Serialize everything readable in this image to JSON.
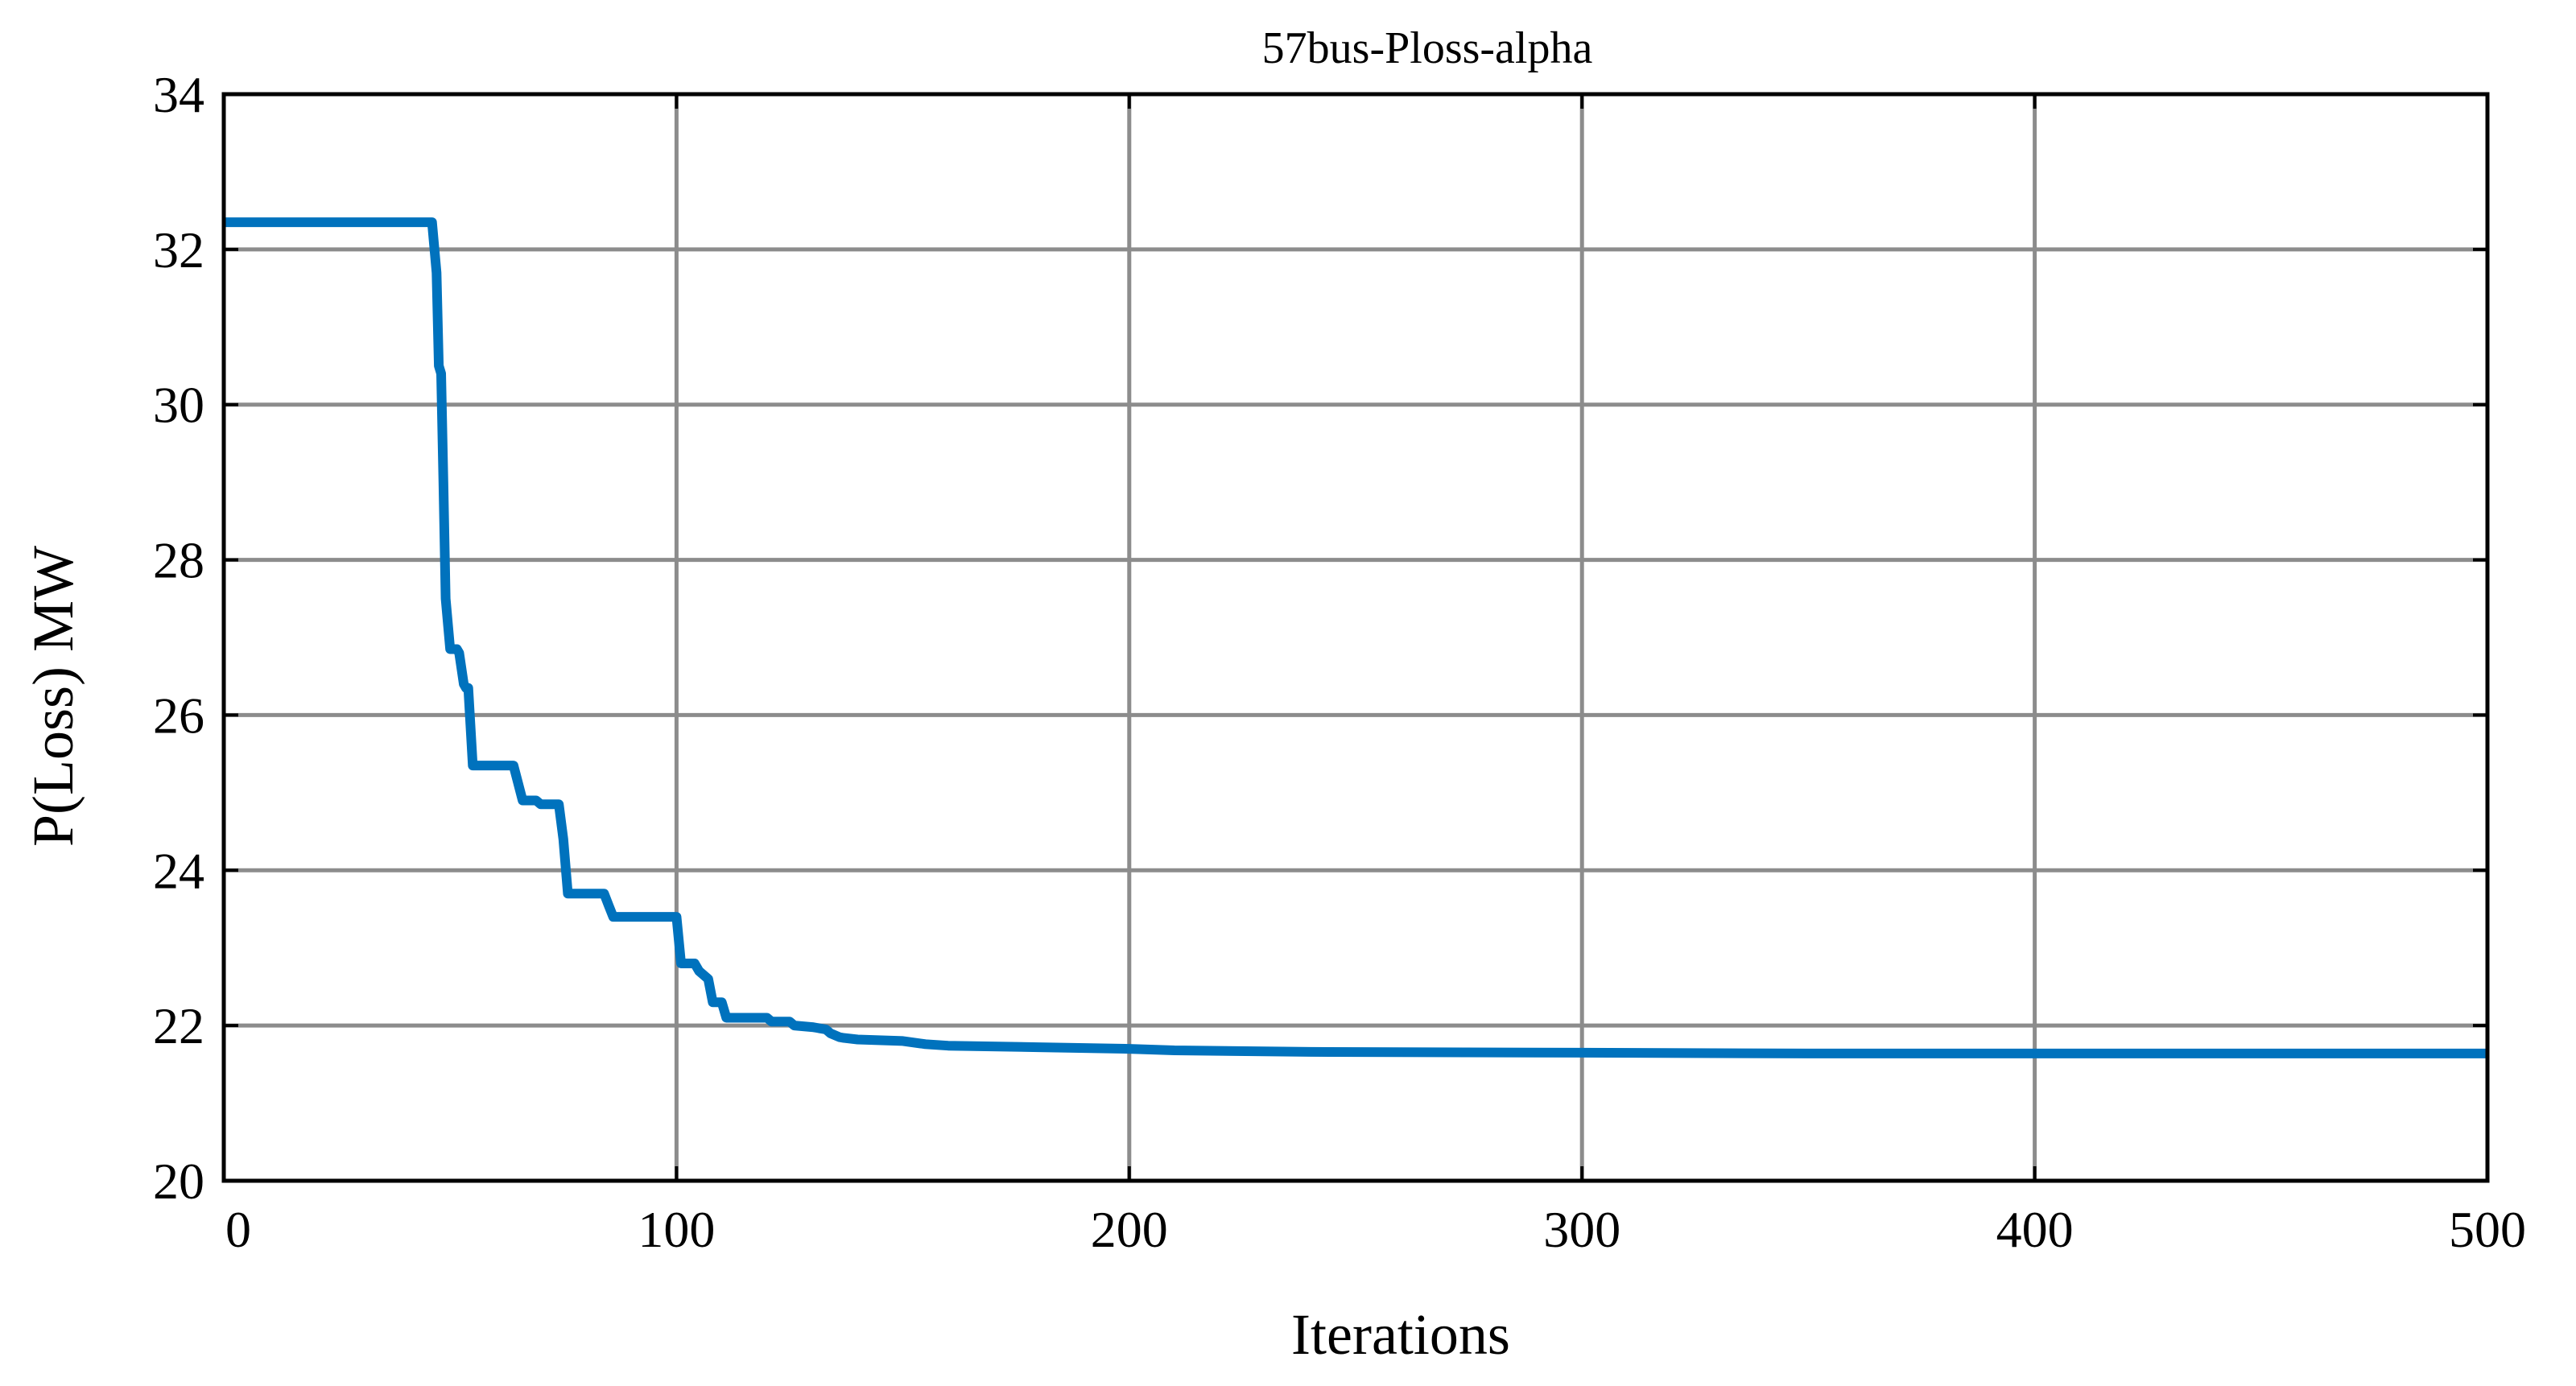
{
  "chart_data": {
    "type": "line",
    "title": "57bus-Ploss-alpha",
    "xlabel": "Iterations",
    "ylabel": "P(Loss) MW",
    "xlim": [
      0,
      500
    ],
    "ylim": [
      20,
      34
    ],
    "xticks": [
      0,
      100,
      200,
      300,
      400,
      500
    ],
    "yticks": [
      20,
      22,
      24,
      26,
      28,
      30,
      32,
      34
    ],
    "xtick_labels": [
      "0",
      "100",
      "200",
      "300",
      "400",
      "500"
    ],
    "ytick_labels": [
      "20",
      "22",
      "24",
      "26",
      "28",
      "30",
      "32",
      "34"
    ],
    "grid": true,
    "line_color": "#0072BD",
    "series": [
      {
        "x": [
          0,
          46,
          47,
          47.5,
          48,
          48.5,
          49,
          50,
          51,
          51.5,
          52,
          53,
          53.5,
          54,
          55,
          63,
          64,
          66,
          67,
          68,
          69,
          70,
          71,
          72,
          74,
          75,
          76,
          77,
          78,
          84,
          85,
          86,
          92,
          99,
          100,
          101,
          104,
          105,
          107,
          108,
          110,
          111,
          112,
          113,
          120,
          121,
          125,
          126,
          130,
          131,
          133,
          134,
          136,
          137,
          140,
          150,
          155,
          160,
          180,
          200,
          210,
          240,
          300,
          350,
          400,
          500
        ],
        "y": [
          32.35,
          32.35,
          31.7,
          30.5,
          30.4,
          29.0,
          27.5,
          26.85,
          26.85,
          26.85,
          26.8,
          26.4,
          26.35,
          26.35,
          25.35,
          25.35,
          25.35,
          24.9,
          24.9,
          24.9,
          24.9,
          24.85,
          24.85,
          24.85,
          24.85,
          24.4,
          23.7,
          23.7,
          23.7,
          23.7,
          23.55,
          23.4,
          23.4,
          23.4,
          23.4,
          22.8,
          22.8,
          22.7,
          22.6,
          22.3,
          22.3,
          22.1,
          22.1,
          22.1,
          22.1,
          22.05,
          22.05,
          22.0,
          21.98,
          21.97,
          21.95,
          21.9,
          21.85,
          21.84,
          21.82,
          21.8,
          21.76,
          21.74,
          21.72,
          21.7,
          21.68,
          21.66,
          21.65,
          21.64,
          21.64,
          21.64
        ]
      }
    ]
  }
}
